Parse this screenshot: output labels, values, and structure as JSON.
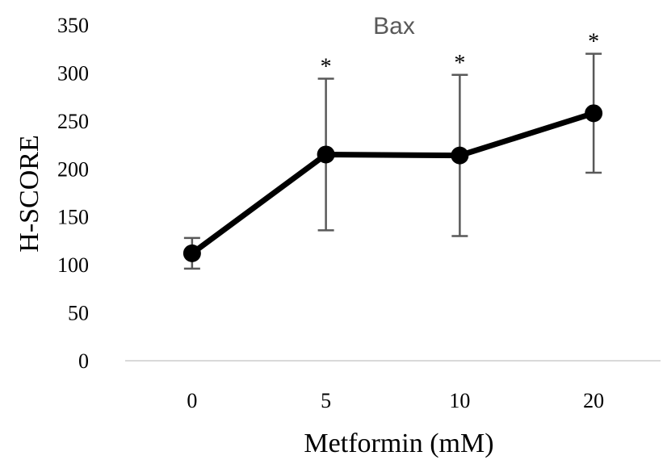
{
  "chart_data": {
    "type": "line",
    "title": "Bax",
    "xlabel": "Metformin (mM)",
    "ylabel": "H-SCORE",
    "categories": [
      "0",
      "5",
      "10",
      "20"
    ],
    "series": [
      {
        "values": [
          112,
          215,
          214,
          258
        ],
        "error": [
          16,
          79,
          84,
          62
        ],
        "significance": [
          "",
          "*",
          "*",
          "*"
        ]
      }
    ],
    "yticks": [
      "0",
      "50",
      "100",
      "150",
      "200",
      "250",
      "300",
      "350"
    ],
    "ylim": [
      0,
      350
    ],
    "grid": false,
    "legend": "none",
    "colors": {
      "line": "#000000",
      "errorbar": "#595959",
      "axis": "#d9d9d9",
      "title": "#595959"
    }
  }
}
